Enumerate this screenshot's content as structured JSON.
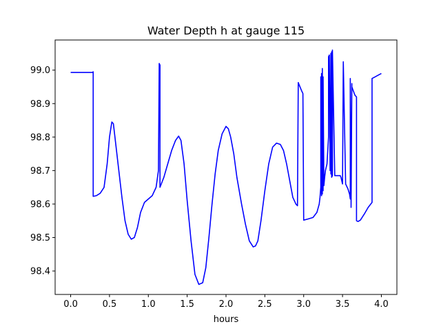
{
  "chart_data": {
    "type": "line",
    "title": "Water Depth h at gauge 115",
    "xlabel": "hours",
    "ylabel": "",
    "xlim": [
      -0.2,
      4.2
    ],
    "ylim": [
      98.33,
      99.09
    ],
    "xticks": [
      0.0,
      0.5,
      1.0,
      1.5,
      2.0,
      2.5,
      3.0,
      3.5,
      4.0
    ],
    "xtick_labels": [
      "0.0",
      "0.5",
      "1.0",
      "1.5",
      "2.0",
      "2.5",
      "3.0",
      "3.5",
      "4.0"
    ],
    "yticks": [
      98.4,
      98.5,
      98.6,
      98.7,
      98.8,
      98.9,
      99.0
    ],
    "ytick_labels": [
      "98.4",
      "98.5",
      "98.6",
      "98.7",
      "98.8",
      "98.9",
      "99.0"
    ],
    "grid": false,
    "series": [
      {
        "color": "#0000ff",
        "x": [
          0.0,
          0.28,
          0.29,
          0.29,
          0.33,
          0.38,
          0.43,
          0.47,
          0.5,
          0.53,
          0.55,
          0.58,
          0.62,
          0.66,
          0.7,
          0.74,
          0.78,
          0.82,
          0.86,
          0.9,
          0.95,
          1.0,
          1.05,
          1.1,
          1.13,
          1.14,
          1.15,
          1.15,
          1.2,
          1.25,
          1.3,
          1.35,
          1.39,
          1.42,
          1.46,
          1.5,
          1.55,
          1.6,
          1.65,
          1.7,
          1.74,
          1.78,
          1.82,
          1.86,
          1.9,
          1.95,
          2.0,
          2.03,
          2.06,
          2.1,
          2.14,
          2.2,
          2.25,
          2.3,
          2.35,
          2.38,
          2.41,
          2.45,
          2.5,
          2.55,
          2.6,
          2.65,
          2.7,
          2.74,
          2.78,
          2.82,
          2.86,
          2.9,
          2.92,
          2.93,
          2.97,
          2.99,
          3.0,
          3.05,
          3.12,
          3.17,
          3.2,
          3.21,
          3.22,
          3.22,
          3.23,
          3.23,
          3.24,
          3.24,
          3.25,
          3.25,
          3.26,
          3.27,
          3.28,
          3.3,
          3.32,
          3.32,
          3.33,
          3.34,
          3.35,
          3.35,
          3.36,
          3.36,
          3.37,
          3.37,
          3.4,
          3.44,
          3.47,
          3.48,
          3.49,
          3.5,
          3.51,
          3.54,
          3.57,
          3.59,
          3.6,
          3.6,
          3.61,
          3.61,
          3.62,
          3.62,
          3.66,
          3.68,
          3.68,
          3.7,
          3.73,
          3.78,
          3.83,
          3.88,
          3.88,
          3.92,
          3.96,
          4.0
        ],
        "y": [
          98.993,
          98.993,
          98.995,
          98.623,
          98.625,
          98.632,
          98.65,
          98.72,
          98.8,
          98.845,
          98.84,
          98.78,
          98.7,
          98.62,
          98.55,
          98.51,
          98.495,
          98.5,
          98.53,
          98.575,
          98.605,
          98.615,
          98.625,
          98.65,
          98.7,
          99.02,
          99.015,
          98.65,
          98.68,
          98.72,
          98.76,
          98.79,
          98.803,
          98.79,
          98.72,
          98.61,
          98.49,
          98.39,
          98.36,
          98.365,
          98.41,
          98.5,
          98.6,
          98.69,
          98.76,
          98.81,
          98.832,
          98.825,
          98.8,
          98.75,
          98.68,
          98.6,
          98.54,
          98.49,
          98.472,
          98.475,
          98.49,
          98.55,
          98.64,
          98.72,
          98.77,
          98.782,
          98.778,
          98.76,
          98.72,
          98.67,
          98.62,
          98.6,
          98.595,
          98.963,
          98.94,
          98.93,
          98.552,
          98.555,
          98.56,
          98.575,
          98.6,
          98.62,
          98.65,
          98.98,
          98.625,
          98.99,
          98.63,
          99.005,
          98.64,
          98.98,
          98.655,
          98.68,
          98.7,
          98.72,
          98.8,
          99.04,
          99.045,
          98.7,
          99.05,
          98.69,
          99.055,
          98.68,
          98.685,
          99.06,
          98.685,
          98.685,
          98.685,
          98.68,
          98.67,
          98.66,
          99.025,
          98.66,
          98.645,
          98.63,
          98.615,
          98.975,
          98.6,
          98.59,
          98.96,
          98.95,
          98.925,
          98.92,
          98.55,
          98.548,
          98.552,
          98.57,
          98.59,
          98.605,
          98.975,
          98.98,
          98.985,
          98.99
        ]
      }
    ]
  }
}
